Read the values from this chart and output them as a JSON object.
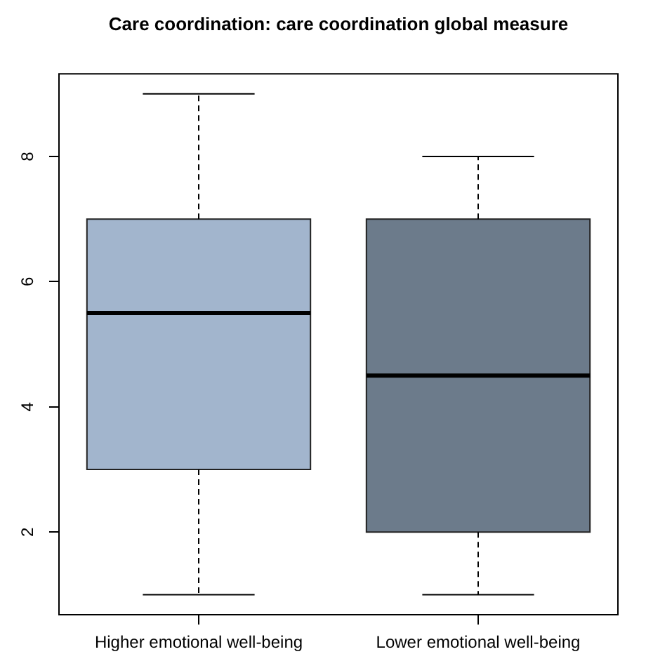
{
  "chart_data": {
    "type": "box",
    "title": "Care coordination: care coordination global measure",
    "categories": [
      "Higher emotional well-being",
      "Lower emotional well-being"
    ],
    "boxes": [
      {
        "low": 1,
        "q1": 3,
        "median": 5.5,
        "q3": 7,
        "high": 9
      },
      {
        "low": 1,
        "q1": 2,
        "median": 4.5,
        "q3": 7,
        "high": 8
      }
    ],
    "colors": [
      "#a2b5cd",
      "#6c7b8b"
    ],
    "ylim": [
      0.68,
      9.32
    ],
    "yticks": [
      2,
      4,
      6,
      8
    ]
  }
}
